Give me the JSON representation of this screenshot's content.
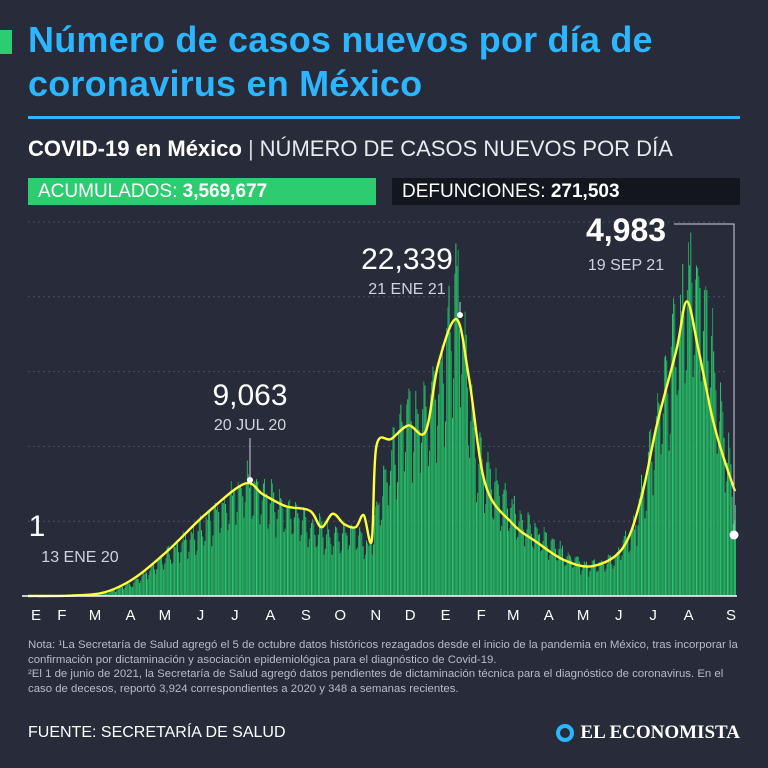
{
  "title": "Número de casos nuevos por día de coronavirus en México",
  "subtitle": {
    "bold": "COVID-19 en México",
    "separator": "|",
    "rest": "NÚMERO DE CASOS NUEVOS POR DÍA"
  },
  "stats": {
    "acumulados_label": "ACUMULADOS:",
    "acumulados_value": "3,569,677",
    "defunciones_label": "DEFUNCIONES:",
    "defunciones_value": "271,503"
  },
  "colors": {
    "accent": "#2bb6ff",
    "bars": "#2ecc71",
    "trend": "#ffff3c",
    "background": "#272b3a"
  },
  "chart_data": {
    "type": "bar",
    "x_start": "2020-01-13",
    "x_end": "2021-09-21",
    "month_labels": [
      "E",
      "F",
      "M",
      "A",
      "M",
      "J",
      "J",
      "A",
      "S",
      "O",
      "N",
      "D",
      "E",
      "F",
      "M",
      "A",
      "M",
      "J",
      "J",
      "A",
      "S"
    ],
    "ylim": [
      0,
      25000
    ],
    "grid": true,
    "daily_profile_x": [
      "2020-01-13",
      "2020-02-20",
      "2020-03-20",
      "2020-04-15",
      "2020-05-15",
      "2020-06-15",
      "2020-07-20",
      "2020-08-20",
      "2020-09-15",
      "2020-10-05",
      "2020-10-25",
      "2020-11-05",
      "2020-11-18",
      "2020-12-05",
      "2020-12-25",
      "2021-01-08",
      "2021-01-21",
      "2021-02-05",
      "2021-02-25",
      "2021-03-25",
      "2021-04-20",
      "2021-05-15",
      "2021-06-05",
      "2021-06-25",
      "2021-07-15",
      "2021-08-01",
      "2021-08-15",
      "2021-08-25",
      "2021-09-08",
      "2021-09-21"
    ],
    "daily_profile_y": [
      1,
      5,
      150,
      900,
      2800,
      4700,
      7500,
      6000,
      4700,
      3900,
      4400,
      3300,
      7500,
      11500,
      12500,
      14500,
      20500,
      9800,
      6800,
      4700,
      3000,
      2000,
      2300,
      4500,
      11500,
      17500,
      21500,
      19000,
      12000,
      6000
    ],
    "trend_x": [
      "2020-01-13",
      "2020-02-20",
      "2020-03-20",
      "2020-04-15",
      "2020-05-15",
      "2020-06-15",
      "2020-07-20",
      "2020-08-05",
      "2020-08-25",
      "2020-09-15",
      "2020-09-25",
      "2020-10-05",
      "2020-10-15",
      "2020-10-25",
      "2020-11-01",
      "2020-11-08",
      "2020-11-12",
      "2020-11-25",
      "2020-12-10",
      "2020-12-25",
      "2021-01-05",
      "2021-01-21",
      "2021-02-01",
      "2021-02-15",
      "2021-03-10",
      "2021-04-01",
      "2021-04-25",
      "2021-05-20",
      "2021-06-15",
      "2021-07-01",
      "2021-07-15",
      "2021-08-01",
      "2021-08-10",
      "2021-08-20",
      "2021-09-01",
      "2021-09-10",
      "2021-09-21"
    ],
    "trend_y": [
      0,
      30,
      250,
      1200,
      3100,
      5400,
      7500,
      6800,
      6000,
      5700,
      4600,
      5500,
      4800,
      4600,
      5400,
      3700,
      10000,
      10500,
      11400,
      11000,
      15500,
      18500,
      14500,
      7500,
      4900,
      3600,
      2400,
      2000,
      3200,
      6500,
      11500,
      16500,
      19700,
      16500,
      12000,
      9500,
      7000
    ],
    "annotations": [
      {
        "value": "1",
        "date": "13 ENE 20",
        "x": "2020-01-13",
        "y": 1
      },
      {
        "value": "9,063",
        "date": "20 JUL 20",
        "x": "2020-07-20",
        "y": 9063
      },
      {
        "value": "22,339",
        "date": "21 ENE 21",
        "x": "2021-01-21",
        "y": 22339
      },
      {
        "value": "4,983",
        "date": "19 SEP 21",
        "x": "2021-09-19",
        "y": 4983
      }
    ]
  },
  "notes": [
    "Nota: ¹La Secretaría de Salud agregó el 5 de octubre datos históricos rezagados desde el inicio de la pandemia en México, tras incorporar la confirmación por dictaminación y asociación epidemiológica para el diagnóstico de Covid-19.",
    "²El 1 de junio de 2021, la Secretaría de Salud agregó datos pendientes de dictaminación técnica para el diagnóstico de coronavirus. En el caso de decesos, reportó 3,924 correspondientes a 2020 y 348 a semanas recientes."
  ],
  "source": "FUENTE: SECRETARÍA DE SALUD",
  "brand": "EL ECONOMISTA"
}
